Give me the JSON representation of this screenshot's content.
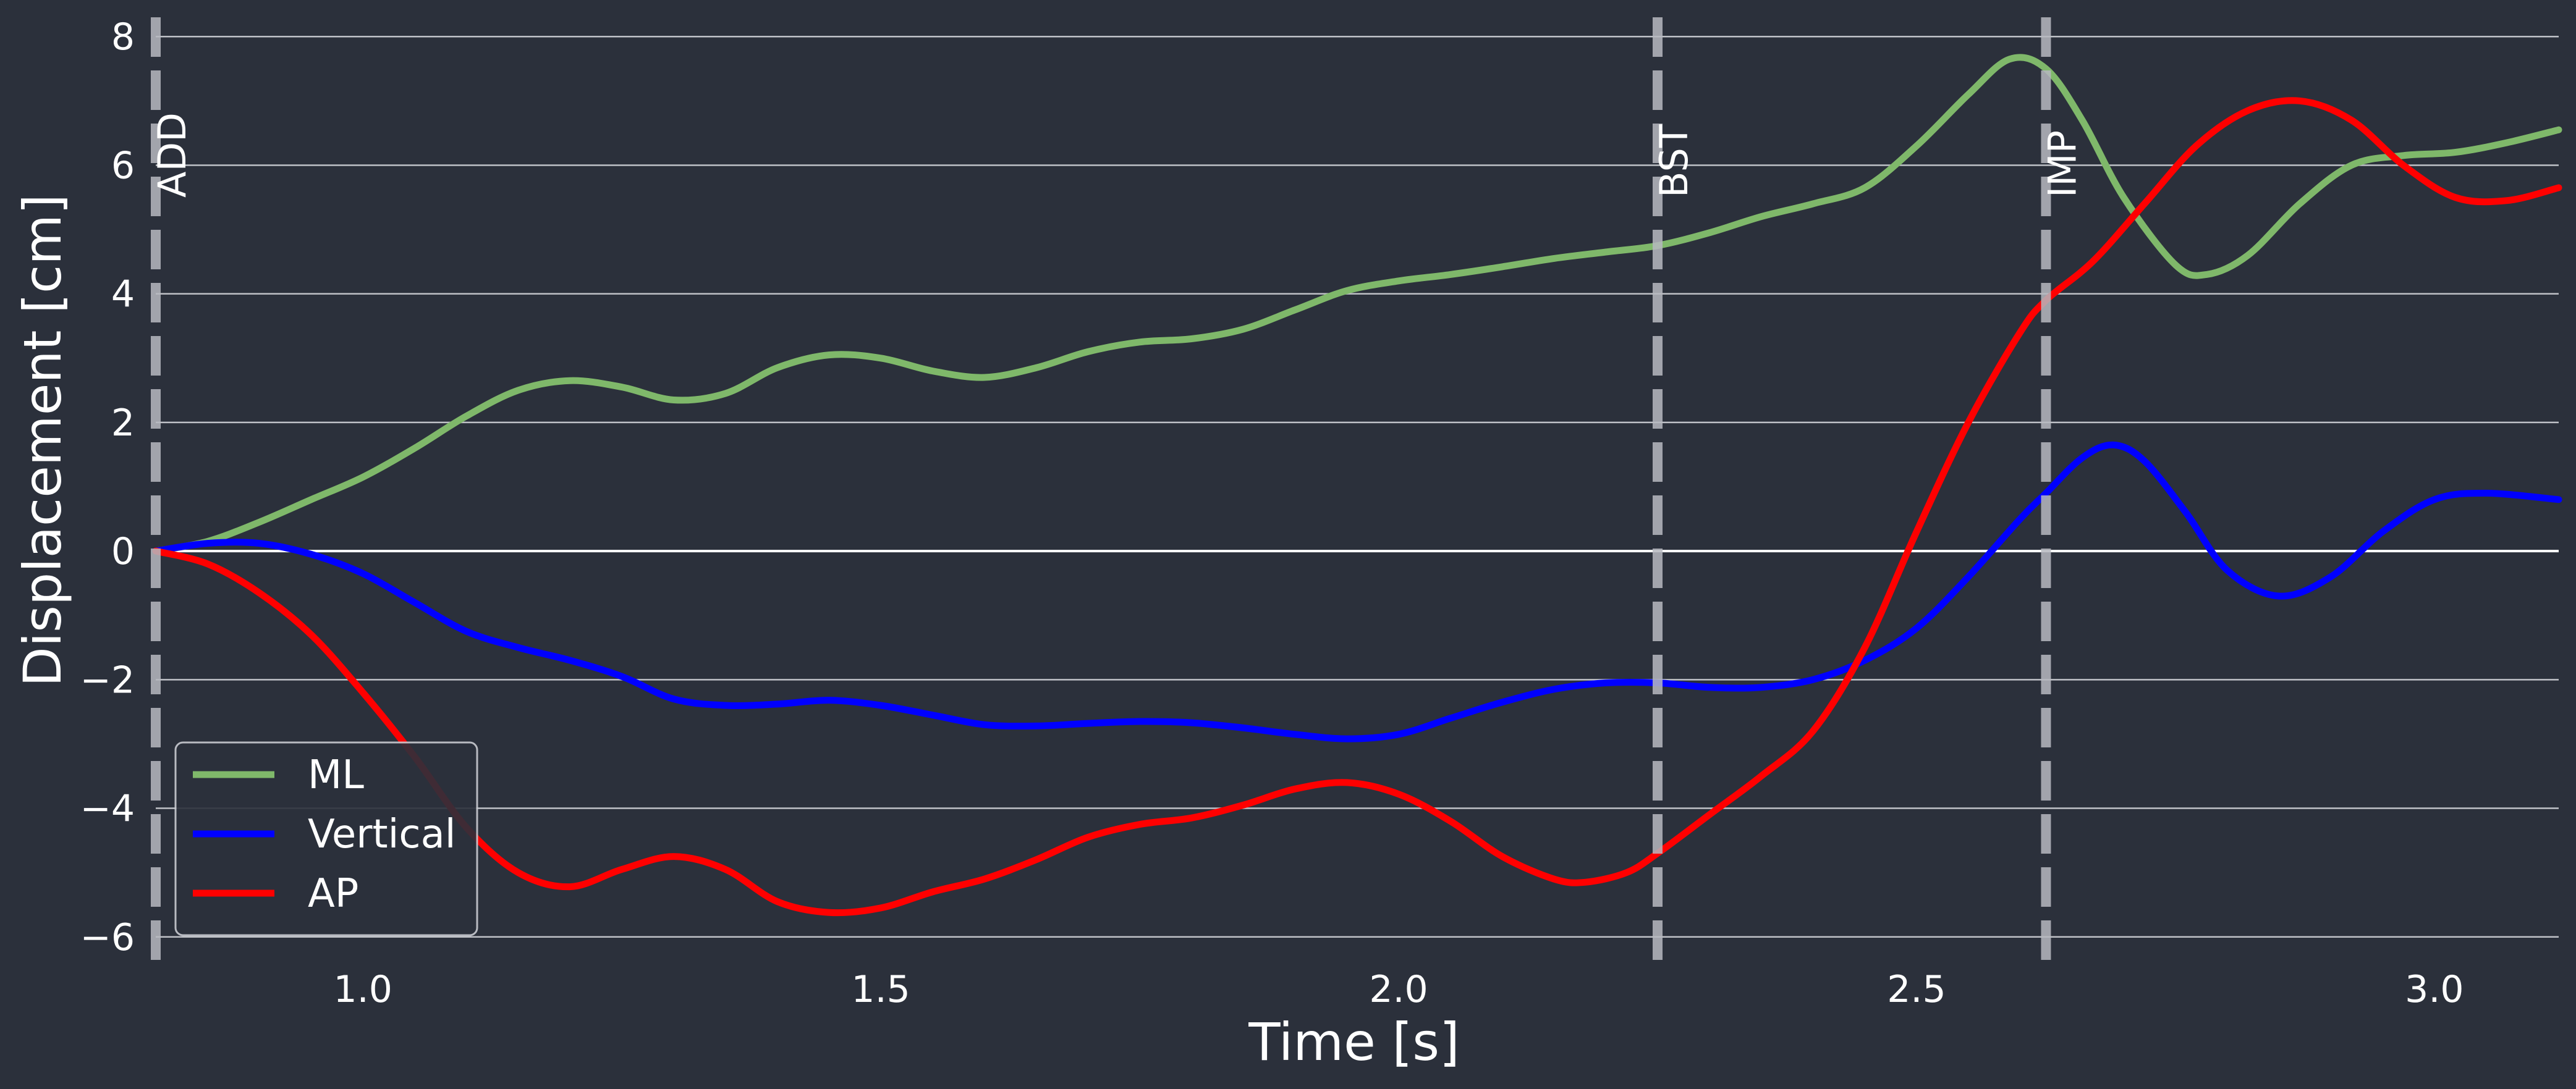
{
  "colors": {
    "background": "#2b303b",
    "grid": "#d9dbe0",
    "zero_line": "#ffffff",
    "event_line": "#b7b9c0",
    "text": "#ffffff"
  },
  "chart_data": {
    "type": "line",
    "title": "",
    "xlabel": "Time [s]",
    "ylabel": "Displacement [cm]",
    "xlim": [
      0.8,
      3.12
    ],
    "ylim": [
      -6.3,
      8.3
    ],
    "x_ticks": [
      1.0,
      1.5,
      2.0,
      2.5,
      3.0
    ],
    "x_tick_labels": [
      "1.0",
      "1.5",
      "2.0",
      "2.5",
      "3.0"
    ],
    "y_ticks": [
      8,
      6,
      4,
      2,
      0,
      -2,
      -4,
      -6
    ],
    "y_tick_labels": [
      "8",
      "6",
      "4",
      "2",
      "0",
      "−2",
      "−4",
      "−6"
    ],
    "grid": "horizontal",
    "legend_position": "lower-left",
    "events": [
      {
        "label": "ADD",
        "x": 0.8
      },
      {
        "label": "BST",
        "x": 2.25
      },
      {
        "label": "IMP",
        "x": 2.625
      }
    ],
    "series": [
      {
        "name": "ML",
        "color": "#7fb86a",
        "points": [
          [
            0.8,
            0.0
          ],
          [
            0.85,
            0.15
          ],
          [
            0.9,
            0.45
          ],
          [
            0.95,
            0.8
          ],
          [
            1.0,
            1.15
          ],
          [
            1.05,
            1.6
          ],
          [
            1.1,
            2.1
          ],
          [
            1.15,
            2.5
          ],
          [
            1.2,
            2.65
          ],
          [
            1.25,
            2.55
          ],
          [
            1.3,
            2.35
          ],
          [
            1.35,
            2.45
          ],
          [
            1.4,
            2.85
          ],
          [
            1.45,
            3.05
          ],
          [
            1.5,
            3.0
          ],
          [
            1.55,
            2.8
          ],
          [
            1.6,
            2.7
          ],
          [
            1.65,
            2.85
          ],
          [
            1.7,
            3.1
          ],
          [
            1.75,
            3.25
          ],
          [
            1.8,
            3.3
          ],
          [
            1.85,
            3.45
          ],
          [
            1.9,
            3.75
          ],
          [
            1.95,
            4.05
          ],
          [
            2.0,
            4.2
          ],
          [
            2.05,
            4.3
          ],
          [
            2.1,
            4.42
          ],
          [
            2.15,
            4.55
          ],
          [
            2.2,
            4.65
          ],
          [
            2.25,
            4.75
          ],
          [
            2.3,
            4.95
          ],
          [
            2.35,
            5.2
          ],
          [
            2.4,
            5.4
          ],
          [
            2.45,
            5.65
          ],
          [
            2.5,
            6.3
          ],
          [
            2.55,
            7.1
          ],
          [
            2.59,
            7.65
          ],
          [
            2.625,
            7.5
          ],
          [
            2.66,
            6.7
          ],
          [
            2.7,
            5.5
          ],
          [
            2.75,
            4.45
          ],
          [
            2.78,
            4.3
          ],
          [
            2.82,
            4.6
          ],
          [
            2.87,
            5.4
          ],
          [
            2.92,
            6.0
          ],
          [
            2.97,
            6.15
          ],
          [
            3.02,
            6.2
          ],
          [
            3.07,
            6.35
          ],
          [
            3.12,
            6.55
          ]
        ]
      },
      {
        "name": "Vertical",
        "color": "#0000ff",
        "points": [
          [
            0.8,
            0.0
          ],
          [
            0.85,
            0.12
          ],
          [
            0.9,
            0.12
          ],
          [
            0.95,
            -0.05
          ],
          [
            1.0,
            -0.35
          ],
          [
            1.05,
            -0.8
          ],
          [
            1.1,
            -1.25
          ],
          [
            1.15,
            -1.5
          ],
          [
            1.2,
            -1.7
          ],
          [
            1.25,
            -1.95
          ],
          [
            1.3,
            -2.3
          ],
          [
            1.35,
            -2.4
          ],
          [
            1.4,
            -2.38
          ],
          [
            1.45,
            -2.32
          ],
          [
            1.5,
            -2.4
          ],
          [
            1.55,
            -2.55
          ],
          [
            1.6,
            -2.7
          ],
          [
            1.65,
            -2.72
          ],
          [
            1.7,
            -2.68
          ],
          [
            1.75,
            -2.65
          ],
          [
            1.8,
            -2.67
          ],
          [
            1.85,
            -2.75
          ],
          [
            1.9,
            -2.85
          ],
          [
            1.95,
            -2.92
          ],
          [
            2.0,
            -2.85
          ],
          [
            2.05,
            -2.6
          ],
          [
            2.1,
            -2.35
          ],
          [
            2.15,
            -2.15
          ],
          [
            2.2,
            -2.05
          ],
          [
            2.25,
            -2.05
          ],
          [
            2.3,
            -2.12
          ],
          [
            2.35,
            -2.12
          ],
          [
            2.4,
            -2.0
          ],
          [
            2.45,
            -1.7
          ],
          [
            2.5,
            -1.2
          ],
          [
            2.55,
            -0.4
          ],
          [
            2.6,
            0.5
          ],
          [
            2.625,
            0.9
          ],
          [
            2.66,
            1.45
          ],
          [
            2.69,
            1.65
          ],
          [
            2.72,
            1.4
          ],
          [
            2.76,
            0.6
          ],
          [
            2.8,
            -0.3
          ],
          [
            2.85,
            -0.7
          ],
          [
            2.9,
            -0.4
          ],
          [
            2.95,
            0.3
          ],
          [
            3.0,
            0.8
          ],
          [
            3.05,
            0.9
          ],
          [
            3.12,
            0.8
          ]
        ]
      },
      {
        "name": "AP",
        "color": "#ff0000",
        "points": [
          [
            0.8,
            0.0
          ],
          [
            0.85,
            -0.2
          ],
          [
            0.9,
            -0.65
          ],
          [
            0.95,
            -1.3
          ],
          [
            1.0,
            -2.2
          ],
          [
            1.05,
            -3.2
          ],
          [
            1.1,
            -4.3
          ],
          [
            1.15,
            -5.0
          ],
          [
            1.2,
            -5.22
          ],
          [
            1.25,
            -4.95
          ],
          [
            1.3,
            -4.75
          ],
          [
            1.35,
            -4.95
          ],
          [
            1.4,
            -5.45
          ],
          [
            1.45,
            -5.62
          ],
          [
            1.5,
            -5.55
          ],
          [
            1.55,
            -5.3
          ],
          [
            1.6,
            -5.1
          ],
          [
            1.65,
            -4.8
          ],
          [
            1.7,
            -4.45
          ],
          [
            1.75,
            -4.25
          ],
          [
            1.8,
            -4.15
          ],
          [
            1.85,
            -3.95
          ],
          [
            1.9,
            -3.7
          ],
          [
            1.95,
            -3.6
          ],
          [
            2.0,
            -3.78
          ],
          [
            2.05,
            -4.2
          ],
          [
            2.1,
            -4.75
          ],
          [
            2.15,
            -5.1
          ],
          [
            2.18,
            -5.15
          ],
          [
            2.22,
            -5.0
          ],
          [
            2.25,
            -4.7
          ],
          [
            2.3,
            -4.1
          ],
          [
            2.35,
            -3.5
          ],
          [
            2.4,
            -2.8
          ],
          [
            2.45,
            -1.5
          ],
          [
            2.5,
            0.3
          ],
          [
            2.55,
            2.0
          ],
          [
            2.6,
            3.4
          ],
          [
            2.625,
            3.9
          ],
          [
            2.67,
            4.5
          ],
          [
            2.72,
            5.4
          ],
          [
            2.77,
            6.3
          ],
          [
            2.82,
            6.85
          ],
          [
            2.87,
            7.0
          ],
          [
            2.92,
            6.7
          ],
          [
            2.97,
            6.0
          ],
          [
            3.02,
            5.5
          ],
          [
            3.07,
            5.45
          ],
          [
            3.12,
            5.65
          ]
        ]
      }
    ]
  }
}
